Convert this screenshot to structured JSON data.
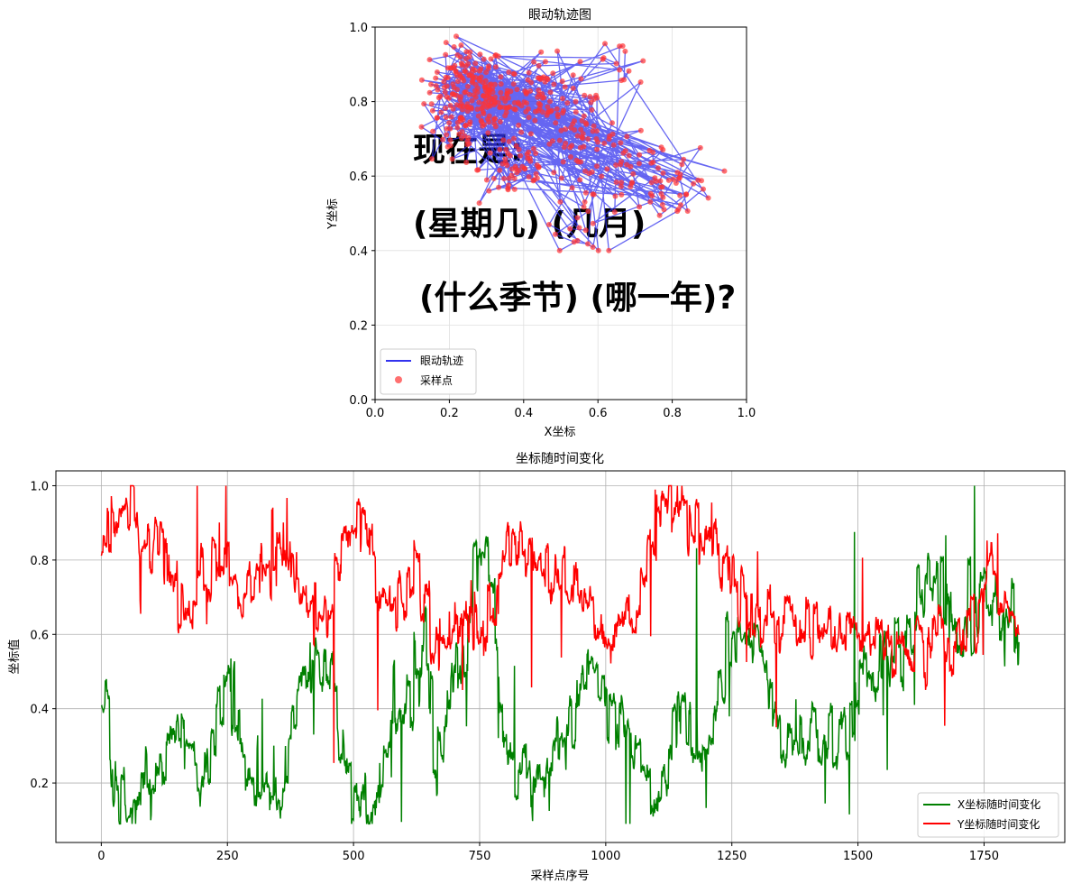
{
  "chart_data": [
    {
      "type": "scatter",
      "title": "眼动轨迹图",
      "xlabel": "X坐标",
      "ylabel": "Y坐标",
      "xlim": [
        0.0,
        1.0
      ],
      "ylim": [
        0.0,
        1.0
      ],
      "xticks": [
        "0.0",
        "0.2",
        "0.4",
        "0.6",
        "0.8",
        "1.0"
      ],
      "yticks": [
        "0.0",
        "0.2",
        "0.4",
        "0.6",
        "0.8",
        "1.0"
      ],
      "grid": true,
      "legend_placement": "lower-left",
      "series": [
        {
          "name": "眼动轨迹",
          "kind": "line",
          "color": "#3333ee"
        },
        {
          "name": "采样点",
          "kind": "scatter",
          "color": "#ff3333"
        }
      ],
      "point_clusters": [
        {
          "x": 0.25,
          "y": 0.85,
          "n": 110
        },
        {
          "x": 0.3,
          "y": 0.8,
          "n": 80
        },
        {
          "x": 0.45,
          "y": 0.82,
          "n": 70
        },
        {
          "x": 0.55,
          "y": 0.7,
          "n": 60
        },
        {
          "x": 0.38,
          "y": 0.62,
          "n": 55
        },
        {
          "x": 0.2,
          "y": 0.72,
          "n": 35
        },
        {
          "x": 0.7,
          "y": 0.6,
          "n": 35
        },
        {
          "x": 0.82,
          "y": 0.58,
          "n": 35
        },
        {
          "x": 0.58,
          "y": 0.48,
          "n": 20
        },
        {
          "x": 0.65,
          "y": 0.88,
          "n": 15
        }
      ],
      "background_text": [
        "现在是:",
        "(星期几) (几月)",
        "(什么季节) (哪一年)?"
      ]
    },
    {
      "type": "line",
      "title": "坐标随时间变化",
      "xlabel": "采样点序号",
      "ylabel": "坐标值",
      "xlim": [
        -90,
        1910
      ],
      "ylim": [
        0.04,
        1.04
      ],
      "xticks": [
        "0",
        "250",
        "500",
        "750",
        "1000",
        "1250",
        "1500",
        "1750"
      ],
      "yticks": [
        "0.2",
        "0.4",
        "0.6",
        "0.8",
        "1.0"
      ],
      "grid": true,
      "legend_placement": "lower-right",
      "n_points": 1820,
      "series": [
        {
          "name": "X坐标随时间变化",
          "color": "#008000",
          "segments": [
            [
              0,
              0.5
            ],
            [
              10,
              0.5
            ],
            [
              20,
              0.22
            ],
            [
              60,
              0.18
            ],
            [
              100,
              0.2
            ],
            [
              150,
              0.35
            ],
            [
              200,
              0.22
            ],
            [
              250,
              0.5
            ],
            [
              290,
              0.2
            ],
            [
              360,
              0.18
            ],
            [
              400,
              0.52
            ],
            [
              450,
              0.5
            ],
            [
              460,
              0.38
            ],
            [
              500,
              0.18
            ],
            [
              540,
              0.12
            ],
            [
              580,
              0.4
            ],
            [
              640,
              0.55
            ],
            [
              660,
              0.22
            ],
            [
              720,
              0.62
            ],
            [
              760,
              0.85
            ],
            [
              800,
              0.3
            ],
            [
              860,
              0.15
            ],
            [
              920,
              0.3
            ],
            [
              980,
              0.55
            ],
            [
              1000,
              0.4
            ],
            [
              1050,
              0.3
            ],
            [
              1100,
              0.18
            ],
            [
              1150,
              0.4
            ],
            [
              1200,
              0.25
            ],
            [
              1250,
              0.6
            ],
            [
              1300,
              0.55
            ],
            [
              1350,
              0.3
            ],
            [
              1400,
              0.4
            ],
            [
              1450,
              0.28
            ],
            [
              1500,
              0.45
            ],
            [
              1550,
              0.52
            ],
            [
              1600,
              0.6
            ],
            [
              1650,
              0.78
            ],
            [
              1700,
              0.58
            ],
            [
              1760,
              0.72
            ],
            [
              1820,
              0.58
            ]
          ]
        },
        {
          "name": "Y坐标随时间变化",
          "color": "#ff0000",
          "segments": [
            [
              0,
              0.88
            ],
            [
              40,
              0.9
            ],
            [
              60,
              0.97
            ],
            [
              80,
              0.78
            ],
            [
              120,
              0.85
            ],
            [
              150,
              0.68
            ],
            [
              200,
              0.75
            ],
            [
              240,
              0.8
            ],
            [
              280,
              0.68
            ],
            [
              340,
              0.85
            ],
            [
              400,
              0.7
            ],
            [
              450,
              0.62
            ],
            [
              470,
              0.85
            ],
            [
              520,
              0.9
            ],
            [
              560,
              0.65
            ],
            [
              620,
              0.78
            ],
            [
              660,
              0.6
            ],
            [
              720,
              0.58
            ],
            [
              760,
              0.62
            ],
            [
              800,
              0.82
            ],
            [
              860,
              0.8
            ],
            [
              920,
              0.75
            ],
            [
              980,
              0.62
            ],
            [
              1000,
              0.58
            ],
            [
              1060,
              0.7
            ],
            [
              1100,
              0.92
            ],
            [
              1150,
              0.95
            ],
            [
              1200,
              0.82
            ],
            [
              1250,
              0.78
            ],
            [
              1300,
              0.6
            ],
            [
              1350,
              0.65
            ],
            [
              1400,
              0.62
            ],
            [
              1450,
              0.58
            ],
            [
              1500,
              0.62
            ],
            [
              1550,
              0.6
            ],
            [
              1600,
              0.58
            ],
            [
              1650,
              0.62
            ],
            [
              1700,
              0.58
            ],
            [
              1760,
              0.75
            ],
            [
              1820,
              0.63
            ]
          ]
        }
      ]
    }
  ]
}
